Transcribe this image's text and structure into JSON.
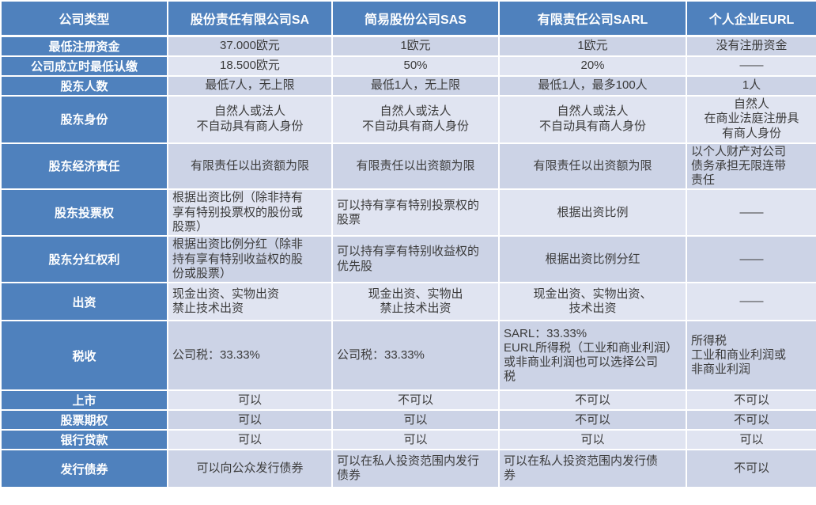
{
  "colors": {
    "accent_blue": "#4f81bd",
    "band_dark": "#ccd3e6",
    "band_light": "#e0e4f1",
    "text": "#3b3b3b",
    "border": "#ffffff"
  },
  "table": {
    "header": {
      "col0": "公司类型",
      "columns": [
        "股份责任有限公司SA",
        "简易股份公司SAS",
        "有限责任公司SARL",
        "个人企业EURL"
      ]
    },
    "rows": [
      {
        "label": "最低注册资金",
        "cells": [
          "37.000欧元",
          "1欧元",
          "1欧元",
          "没有注册资金"
        ]
      },
      {
        "label": "公司成立时最低认缴",
        "cells": [
          "18.500欧元",
          "50%",
          "20%",
          "——"
        ]
      },
      {
        "label": "股东人数",
        "cells": [
          "最低7人，无上限",
          "最低1人，无上限",
          "最低1人，最多100人",
          "1人"
        ]
      },
      {
        "label": "股东身份",
        "cells": [
          "自然人或法人\n不自动具有商人身份",
          "自然人或法人\n不自动具有商人身份",
          "自然人或法人\n不自动具有商人身份",
          "自然人\n在商业法庭注册具\n有商人身份"
        ]
      },
      {
        "label": "股东经济责任",
        "cells": [
          "有限责任以出资额为限",
          "有限责任以出资额为限",
          "有限责任以出资额为限",
          "以个人财产对公司\n债务承担无限连带\n责任"
        ]
      },
      {
        "label": "股东投票权",
        "cells": [
          "根据出资比例（除非持有\n享有特别投票权的股份或\n股票）",
          "可以持有享有特别投票权的\n股票",
          "根据出资比例",
          "——"
        ]
      },
      {
        "label": "股东分红权利",
        "cells": [
          "根据出资比例分红（除非\n持有享有特别收益权的股\n份或股票）",
          "可以持有享有特别收益权的\n优先股",
          "根据出资比例分红",
          "——"
        ]
      },
      {
        "label": "出资",
        "cells": [
          "现金出资、实物出资\n禁止技术出资",
          "现金出资、实物出\n禁止技术出资",
          "现金出资、实物出资、\n技术出资",
          "——"
        ]
      },
      {
        "label": "税收",
        "cells": [
          "公司税：33.33%",
          "公司税：33.33%",
          "SARL：33.33%\nEURL所得税（工业和商业利润）\n或非商业利润也可以选择公司\n税",
          "所得税\n工业和商业利润或\n非商业利润"
        ]
      },
      {
        "label": "上市",
        "cells": [
          "可以",
          "不可以",
          "不可以",
          "不可以"
        ]
      },
      {
        "label": "股票期权",
        "cells": [
          "可以",
          "可以",
          "不可以",
          "不可以"
        ]
      },
      {
        "label": "银行贷款",
        "cells": [
          "可以",
          "可以",
          "可以",
          "可以"
        ]
      },
      {
        "label": "发行债券",
        "cells": [
          "可以向公众发行债券",
          "可以在私人投资范围内发行\n债券",
          "可以在私人投资范围内发行债\n券",
          "不可以"
        ]
      }
    ]
  }
}
